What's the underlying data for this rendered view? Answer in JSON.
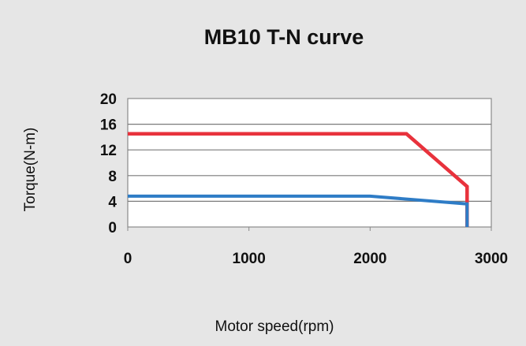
{
  "chart_data": {
    "type": "line",
    "title": "MB10 T-N curve",
    "xlabel": "Motor speed(rpm)",
    "ylabel": "Torque(N-m)",
    "xlim": [
      0,
      3000
    ],
    "ylim": [
      0,
      20
    ],
    "x_ticks": [
      "0",
      "1000",
      "2000",
      "3000"
    ],
    "y_ticks": [
      "0",
      "4",
      "8",
      "12",
      "16",
      "20"
    ],
    "grid": "horizontal",
    "series": [
      {
        "color": "#e8323c",
        "points": [
          {
            "x": 0,
            "y": 14.5
          },
          {
            "x": 2300,
            "y": 14.5
          },
          {
            "x": 2800,
            "y": 6.3
          },
          {
            "x": 2800,
            "y": 0
          }
        ]
      },
      {
        "color": "#2e7cc6",
        "points": [
          {
            "x": 0,
            "y": 4.8
          },
          {
            "x": 2000,
            "y": 4.8
          },
          {
            "x": 2800,
            "y": 3.6
          },
          {
            "x": 2800,
            "y": 0
          }
        ]
      }
    ]
  }
}
